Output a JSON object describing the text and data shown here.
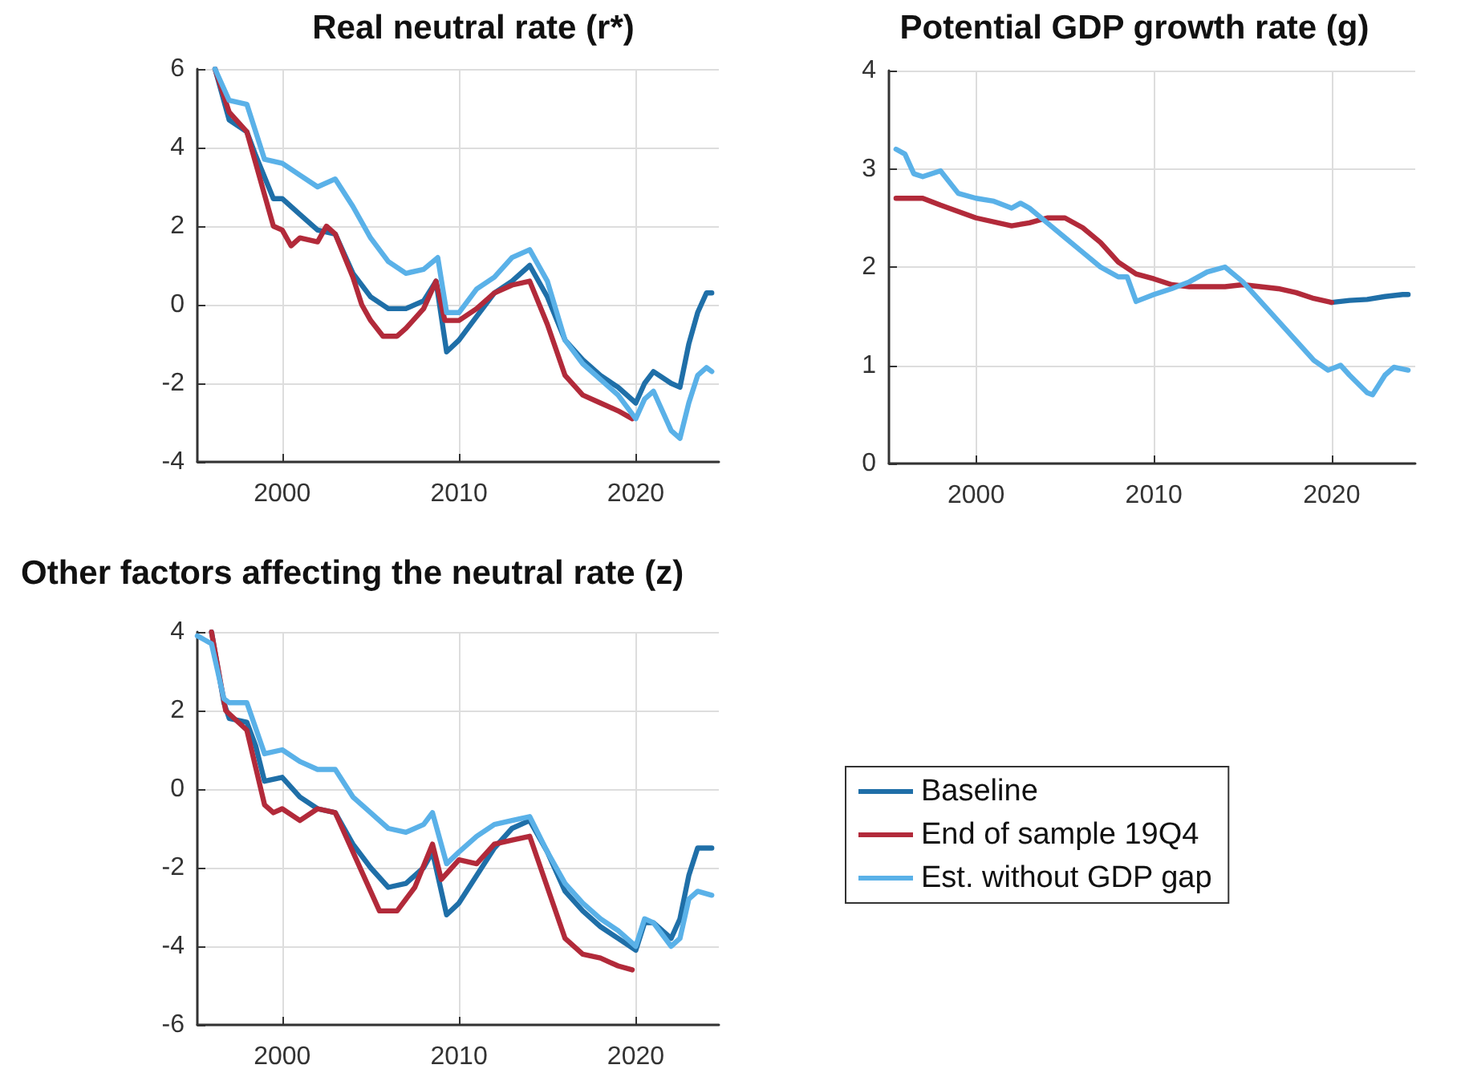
{
  "chart_data": [
    {
      "type": "line",
      "title": "Real neutral rate (r*)",
      "xlim": [
        1995.2,
        2024.7
      ],
      "xticks": [
        2000,
        2010,
        2020
      ],
      "ylim": [
        -4,
        6
      ],
      "yticks": [
        -4,
        -2,
        0,
        2,
        4,
        6
      ],
      "grid": true,
      "series": [
        {
          "color": "#1f6fa8",
          "x": [
            1996.2,
            1997,
            1998,
            1998.5,
            1999.5,
            2000,
            2001,
            2002,
            2003,
            2004,
            2005,
            2006,
            2007,
            2008,
            2008.7,
            2009.3,
            2010,
            2011,
            2012,
            2013,
            2014,
            2015,
            2016,
            2017,
            2018,
            2019,
            2020,
            2020.5,
            2021,
            2022,
            2022.5,
            2023,
            2023.5,
            2024,
            2024.3
          ],
          "values": [
            6,
            4.7,
            4.4,
            3.8,
            2.7,
            2.7,
            2.3,
            1.9,
            1.8,
            0.8,
            0.2,
            -0.1,
            -0.1,
            0.1,
            0.6,
            -1.2,
            -0.9,
            -0.3,
            0.3,
            0.6,
            1.0,
            0.2,
            -0.9,
            -1.4,
            -1.8,
            -2.1,
            -2.5,
            -2.0,
            -1.7,
            -2.0,
            -2.1,
            -1.0,
            -0.2,
            0.3,
            0.3
          ]
        },
        {
          "color": "#b22a3a",
          "x": [
            1996.2,
            1997,
            1998,
            1999,
            1999.5,
            2000,
            2000.5,
            2001,
            2002,
            2002.5,
            2003,
            2004,
            2004.5,
            2005,
            2005.7,
            2006.5,
            2007,
            2008,
            2008.7,
            2009.2,
            2010,
            2011,
            2012,
            2013,
            2014,
            2015,
            2016,
            2017,
            2018,
            2019,
            2019.8
          ],
          "values": [
            6,
            4.9,
            4.4,
            2.8,
            2.0,
            1.9,
            1.5,
            1.7,
            1.6,
            2.0,
            1.8,
            0.7,
            0,
            -0.4,
            -0.8,
            -0.8,
            -0.6,
            -0.1,
            0.6,
            -0.4,
            -0.4,
            -0.1,
            0.3,
            0.5,
            0.6,
            -0.5,
            -1.8,
            -2.3,
            -2.5,
            -2.7,
            -2.9
          ]
        },
        {
          "color": "#5ab1e8",
          "x": [
            1996.2,
            1997,
            1998,
            1999,
            2000,
            2001,
            2002,
            2003,
            2004,
            2005,
            2006,
            2007,
            2008,
            2008.8,
            2009.3,
            2010,
            2011,
            2012,
            2013,
            2014,
            2015,
            2016,
            2017,
            2018,
            2019,
            2020,
            2020.5,
            2021,
            2022,
            2022.5,
            2023,
            2023.5,
            2024,
            2024.3
          ],
          "values": [
            6,
            5.2,
            5.1,
            3.7,
            3.6,
            3.3,
            3.0,
            3.2,
            2.5,
            1.7,
            1.1,
            0.8,
            0.9,
            1.2,
            -0.2,
            -0.2,
            0.4,
            0.7,
            1.2,
            1.4,
            0.6,
            -0.9,
            -1.5,
            -1.9,
            -2.3,
            -2.9,
            -2.4,
            -2.2,
            -3.2,
            -3.4,
            -2.5,
            -1.8,
            -1.6,
            -1.7
          ]
        }
      ]
    },
    {
      "type": "line",
      "title": "Potential GDP growth rate (g)",
      "xlim": [
        1995.1,
        2024.7
      ],
      "xticks": [
        2000,
        2010,
        2020
      ],
      "ylim": [
        0,
        4
      ],
      "yticks": [
        0,
        1,
        2,
        3,
        4
      ],
      "grid": true,
      "series": [
        {
          "color": "#1f6fa8",
          "x": [
            2020,
            2021,
            2022,
            2023,
            2024,
            2024.3
          ],
          "values": [
            1.64,
            1.66,
            1.67,
            1.7,
            1.72,
            1.72
          ]
        },
        {
          "color": "#b22a3a",
          "x": [
            1995.5,
            1997,
            1998,
            2000,
            2002,
            2003,
            2004,
            2005,
            2006,
            2007,
            2008,
            2009,
            2010,
            2011,
            2012,
            2014,
            2015,
            2017,
            2018,
            2019,
            2020
          ],
          "values": [
            2.7,
            2.7,
            2.63,
            2.5,
            2.42,
            2.45,
            2.5,
            2.5,
            2.4,
            2.25,
            2.05,
            1.93,
            1.88,
            1.82,
            1.8,
            1.8,
            1.82,
            1.78,
            1.74,
            1.68,
            1.64
          ]
        },
        {
          "color": "#5ab1e8",
          "x": [
            1995.5,
            1996,
            1996.5,
            1997,
            1998,
            1999,
            2000,
            2001,
            2002,
            2002.5,
            2003,
            2004,
            2005,
            2006,
            2007,
            2008,
            2008.5,
            2009,
            2010,
            2011,
            2012,
            2013,
            2014,
            2015,
            2016,
            2017,
            2018,
            2019,
            2019.8,
            2020.5,
            2021,
            2022,
            2022.3,
            2023,
            2023.5,
            2024.3
          ],
          "values": [
            3.2,
            3.15,
            2.95,
            2.92,
            2.98,
            2.75,
            2.7,
            2.67,
            2.6,
            2.65,
            2.6,
            2.45,
            2.3,
            2.15,
            2.0,
            1.9,
            1.9,
            1.65,
            1.72,
            1.78,
            1.85,
            1.95,
            2.0,
            1.85,
            1.65,
            1.45,
            1.25,
            1.05,
            0.95,
            1.0,
            0.9,
            0.72,
            0.7,
            0.9,
            0.98,
            0.95
          ]
        }
      ]
    },
    {
      "type": "line",
      "title": "Other factors affecting the neutral rate (z)",
      "xlim": [
        1995.2,
        2024.7
      ],
      "xticks": [
        2000,
        2010,
        2020
      ],
      "ylim": [
        -6,
        4
      ],
      "yticks": [
        -6,
        -4,
        -2,
        0,
        2,
        4
      ],
      "grid": true,
      "legend": "right",
      "series": [
        {
          "name": "Baseline",
          "color": "#1f6fa8",
          "x": [
            1996,
            1996.7,
            1997,
            1998,
            1998.5,
            1999,
            2000,
            2001,
            2002,
            2003,
            2004,
            2005,
            2006,
            2007,
            2008,
            2008.5,
            2009.3,
            2010,
            2011,
            2012,
            2013,
            2014,
            2015,
            2016,
            2017,
            2018,
            2019,
            2020,
            2020.5,
            2021,
            2022,
            2022.5,
            2023,
            2023.5,
            2024.3
          ],
          "values": [
            4.0,
            2.2,
            1.8,
            1.7,
            1.1,
            0.2,
            0.3,
            -0.2,
            -0.5,
            -0.6,
            -1.4,
            -2.0,
            -2.5,
            -2.4,
            -2.0,
            -1.6,
            -3.2,
            -2.9,
            -2.2,
            -1.5,
            -1.0,
            -0.8,
            -1.6,
            -2.6,
            -3.1,
            -3.5,
            -3.8,
            -4.1,
            -3.4,
            -3.4,
            -3.8,
            -3.3,
            -2.2,
            -1.5,
            -1.5
          ]
        },
        {
          "name": "End of sample 19Q4",
          "color": "#b22a3a",
          "x": [
            1996,
            1996.8,
            1998,
            1999,
            1999.5,
            2000,
            2001,
            2002,
            2003,
            2004,
            2005,
            2005.5,
            2006.5,
            2007.5,
            2008.5,
            2009,
            2010,
            2011,
            2012,
            2013,
            2014,
            2015,
            2016,
            2017,
            2018,
            2019,
            2019.8
          ],
          "values": [
            4.0,
            2.0,
            1.5,
            -0.4,
            -0.6,
            -0.5,
            -0.8,
            -0.5,
            -0.6,
            -1.6,
            -2.6,
            -3.1,
            -3.1,
            -2.5,
            -1.4,
            -2.3,
            -1.8,
            -1.9,
            -1.4,
            -1.3,
            -1.2,
            -2.5,
            -3.8,
            -4.2,
            -4.3,
            -4.5,
            -4.6
          ]
        },
        {
          "name": "Est. without GDP gap",
          "color": "#5ab1e8",
          "x": [
            1995.2,
            1996,
            1996.7,
            1997,
            1998,
            1999,
            2000,
            2001,
            2002,
            2003,
            2004,
            2005,
            2006,
            2007,
            2008,
            2008.5,
            2009.3,
            2010,
            2011,
            2012,
            2013,
            2014,
            2015,
            2016,
            2017,
            2018,
            2019,
            2020,
            2020.5,
            2021,
            2022,
            2022.5,
            2023,
            2023.5,
            2024.3
          ],
          "values": [
            3.9,
            3.7,
            2.3,
            2.2,
            2.2,
            0.9,
            1.0,
            0.7,
            0.5,
            0.5,
            -0.2,
            -0.6,
            -1.0,
            -1.1,
            -0.9,
            -0.6,
            -1.9,
            -1.6,
            -1.2,
            -0.9,
            -0.8,
            -0.7,
            -1.6,
            -2.4,
            -2.9,
            -3.3,
            -3.6,
            -4.0,
            -3.3,
            -3.4,
            -4.0,
            -3.8,
            -2.8,
            -2.6,
            -2.7
          ]
        }
      ]
    }
  ]
}
